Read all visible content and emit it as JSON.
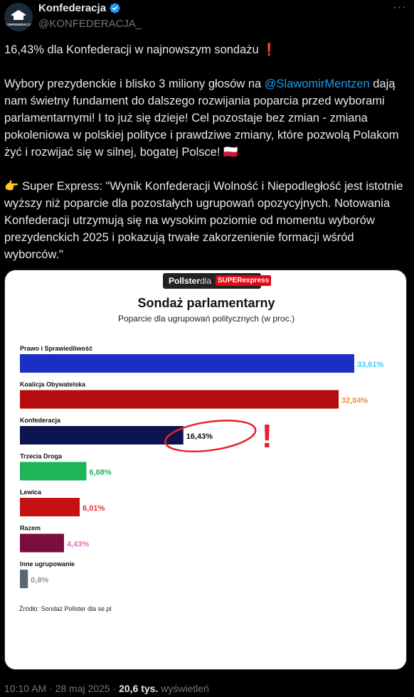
{
  "author": {
    "name": "Konfederacja",
    "handle": "@KONFEDERACJA_",
    "avatar_text": "KONFEDERACJA",
    "verified_icon": "verified-badge-icon",
    "more_icon": "more-options-icon",
    "more_label": "···"
  },
  "tweet": {
    "line1": "16,43% dla Konfederacji w najnowszym sondażu ❗",
    "p2_before": "Wybory prezydenckie i blisko 3 miliony głosów na ",
    "p2_mention": "@SlawomirMentzen",
    "p2_after": " dają nam świetny fundament do dalszego rozwijania poparcia przed wyborami parlamentarnymi! I to już się dzieje! Cel pozostaje bez zmian - zmiana pokoleniowa w polskiej polityce i prawdziwe zmiany, które pozwolą Polakom żyć i rozwijać się w silnej, bogatej Polsce! 🇵🇱",
    "p3": "👉 Super Express: \"Wynik Konfederacji Wolność i Niepodległość jest istotnie wyższy niż poparcie dla pozostałych ugrupowań opozycyjnych. Notowania Konfederacji utrzymują się na wysokim poziomie od momentu wyborów prezydenckich 2025 i pokazują trwałe zakorzenienie formacji wśród wyborców.\""
  },
  "card": {
    "brand_pollster": "Pollster",
    "brand_dla": "dla",
    "brand_super": "SUPERexpress",
    "source": "Źródło: Sondaż Pollster dla se.pl"
  },
  "chart_data": {
    "type": "bar",
    "orientation": "horizontal",
    "title": "Sondaż parlamentarny",
    "subtitle": "Poparcie dla ugrupowań politycznych (w proc.)",
    "categories": [
      "Prawo i Sprawiedliwość",
      "Koalicja Obywatelska",
      "Konfederacja",
      "Trzecia Droga",
      "Lewica",
      "Razem",
      "Inne ugrupowanie"
    ],
    "values": [
      33.61,
      32.04,
      16.43,
      6.68,
      6.01,
      4.43,
      0.8
    ],
    "value_labels": [
      "33,61%",
      "32,04%",
      "16,43%",
      "6,68%",
      "6,01%",
      "4,43%",
      "0,8%"
    ],
    "bar_colors": [
      "#1a2fc4",
      "#b50d0d",
      "#0c1450",
      "#1fb455",
      "#c41212",
      "#7a0c3e",
      "#5a6770"
    ],
    "label_colors": [
      "#3fc8ff",
      "#f08a3a",
      "#111111",
      "#1fb455",
      "#e83030",
      "#e070c0",
      "#8a959e"
    ],
    "annotation": "!",
    "annotation_color": "#e8202a",
    "highlighted_category": "Konfederacja"
  },
  "meta": {
    "time": "10:10 AM · 28 maj 2025 · ",
    "views": "20,6 tys.",
    "views_label": " wyświetleń"
  }
}
